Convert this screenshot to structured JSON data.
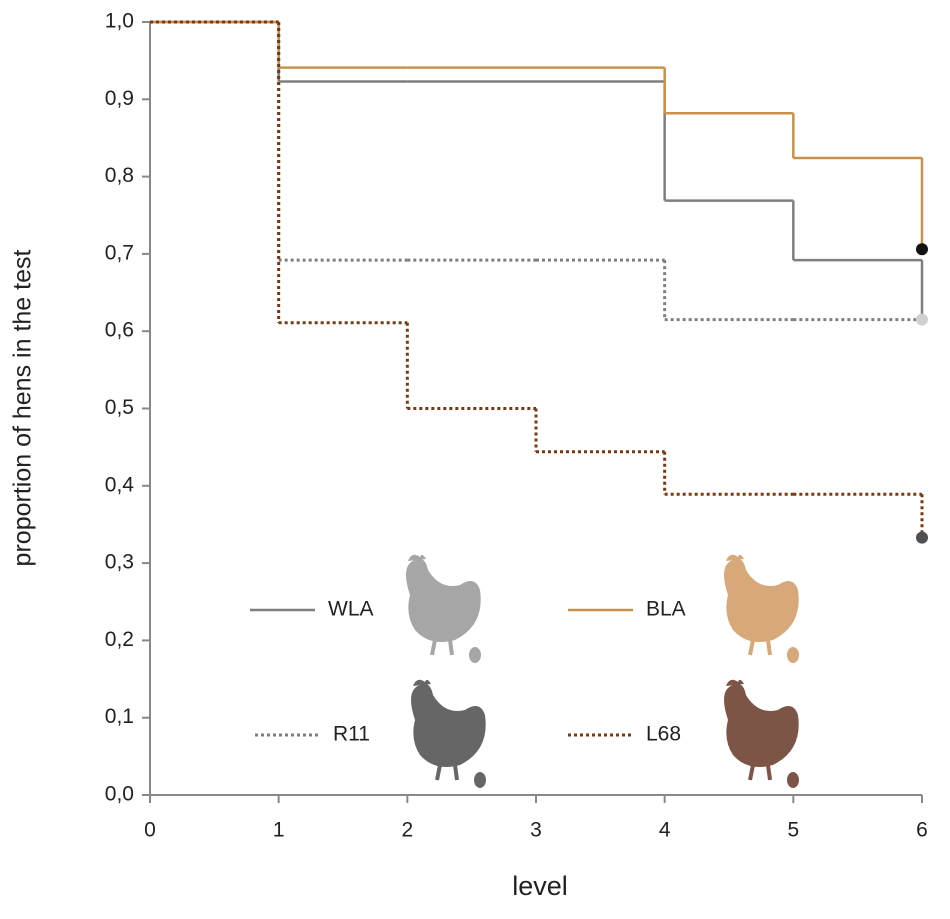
{
  "chart_data": {
    "type": "step",
    "xlabel": "level",
    "ylabel": "proportion of hens in the test",
    "x": [
      0,
      1,
      2,
      3,
      4,
      5,
      6
    ],
    "xlim": [
      0,
      6
    ],
    "xticks": [
      0,
      1,
      2,
      3,
      4,
      5,
      6
    ],
    "ylim": [
      0,
      1
    ],
    "yticks": [
      {
        "value": 0,
        "label": "0,0"
      },
      {
        "value": 0.1,
        "label": "0,1"
      },
      {
        "value": 0.2,
        "label": "0,2"
      },
      {
        "value": 0.3,
        "label": "0,3"
      },
      {
        "value": 0.4,
        "label": "0,4"
      },
      {
        "value": 0.5,
        "label": "0,5"
      },
      {
        "value": 0.6,
        "label": "0,6"
      },
      {
        "value": 0.7,
        "label": "0,7"
      },
      {
        "value": 0.8,
        "label": "0,8"
      },
      {
        "value": 0.9,
        "label": "0,9"
      },
      {
        "value": 1,
        "label": "1,0"
      }
    ],
    "series": [
      {
        "name": "WLA",
        "color": "#7f7f7f",
        "dashed": false,
        "icon_color": "#a6a6a6",
        "values": [
          1,
          0.923,
          0.923,
          0.923,
          0.769,
          0.692,
          0.615
        ]
      },
      {
        "name": "BLA",
        "color": "#c8924a",
        "dashed": false,
        "icon_color": "#d7a87a",
        "marker_color": "#111111",
        "values": [
          1,
          0.941,
          0.941,
          0.941,
          0.882,
          0.824,
          0.706
        ]
      },
      {
        "name": "R11",
        "color": "#7f7f7f",
        "dashed": true,
        "icon_color": "#666666",
        "marker_color": "#d0d0d0",
        "values": [
          1,
          0.692,
          0.692,
          0.692,
          0.615,
          0.615,
          0.615
        ]
      },
      {
        "name": "L68",
        "color": "#7a3810",
        "dashed": true,
        "icon_color": "#7d5546",
        "marker_color": "#505050",
        "values": [
          1,
          0.611,
          0.5,
          0.444,
          0.389,
          0.389,
          0.333
        ]
      }
    ]
  }
}
